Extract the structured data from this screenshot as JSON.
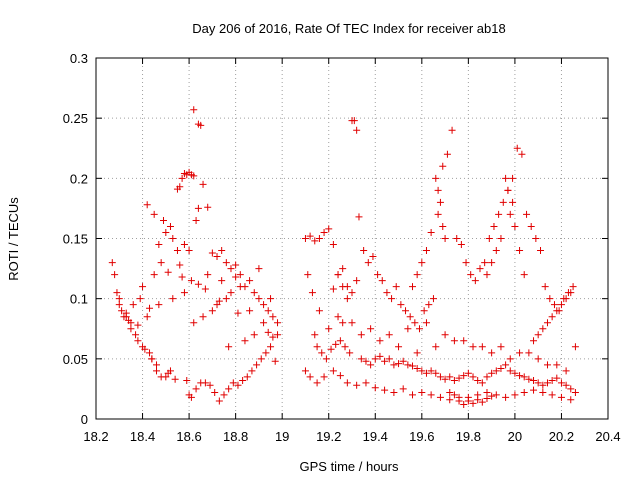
{
  "chart_data": {
    "type": "scatter",
    "title": "Day 206 of 2016, Rate Of TEC Index for receiver ab18",
    "xlabel": "GPS time / hours",
    "ylabel": "ROTI / TECUs",
    "xlim": [
      18.2,
      20.4
    ],
    "ylim": [
      0,
      0.3
    ],
    "xticks": [
      "18.2",
      "18.4",
      "18.6",
      "18.8",
      "19",
      "19.2",
      "19.4",
      "19.6",
      "19.8",
      "20",
      "20.2",
      "20.4"
    ],
    "yticks": [
      "0",
      "0.05",
      "0.1",
      "0.15",
      "0.2",
      "0.25",
      "0.3"
    ],
    "grid": true,
    "marker": "+",
    "color": "#e00000",
    "series": [
      {
        "name": "ROTI",
        "x": [
          18.62,
          18.64,
          18.65,
          18.58,
          18.59,
          18.6,
          18.61,
          18.62,
          18.56,
          18.55,
          18.57,
          18.66,
          18.64,
          18.68,
          18.63,
          18.42,
          18.45,
          18.5,
          18.52,
          18.47,
          18.49,
          18.53,
          18.6,
          18.58,
          18.7,
          18.72,
          18.74,
          18.76,
          18.78,
          18.8,
          18.82,
          18.84,
          18.86,
          18.88,
          18.9,
          18.92,
          18.94,
          18.96,
          18.98,
          18.27,
          18.28,
          18.29,
          18.3,
          18.31,
          18.32,
          18.33,
          18.35,
          18.37,
          18.38,
          18.4,
          18.41,
          18.43,
          18.44,
          18.46,
          18.48,
          18.51,
          18.54,
          18.67,
          18.69,
          18.71,
          18.73,
          18.75,
          18.77,
          18.79,
          18.81,
          18.83,
          18.85,
          18.87,
          18.89,
          18.91,
          18.93,
          18.95,
          18.97,
          18.6,
          18.61,
          18.63,
          18.65,
          18.59,
          18.5,
          18.52,
          18.46,
          18.44,
          18.62,
          18.66,
          18.7,
          18.72,
          18.76,
          18.78,
          18.82,
          18.68,
          18.74,
          18.8,
          18.9,
          18.95,
          18.98,
          18.3,
          18.33,
          18.36,
          18.4,
          18.45,
          18.48,
          18.55,
          18.57,
          18.64,
          18.86,
          18.92,
          18.35,
          18.39,
          18.42,
          18.47,
          18.53,
          18.58,
          18.77,
          18.84,
          18.88,
          18.94,
          18.96,
          18.34,
          18.38,
          18.43,
          18.51,
          18.56,
          18.61,
          18.67,
          18.73,
          18.81,
          19.3,
          19.31,
          19.32,
          19.1,
          19.12,
          19.14,
          19.16,
          19.18,
          19.2,
          19.22,
          19.24,
          19.26,
          19.28,
          19.33,
          19.35,
          19.37,
          19.39,
          19.41,
          19.43,
          19.45,
          19.47,
          19.49,
          19.51,
          19.53,
          19.55,
          19.57,
          19.59,
          19.61,
          19.63,
          19.65,
          19.67,
          19.69,
          19.71,
          19.73,
          19.75,
          19.77,
          19.79,
          19.81,
          19.83,
          19.85,
          19.87,
          19.89,
          19.91,
          19.93,
          19.95,
          19.97,
          19.99,
          20.01,
          20.03,
          20.05,
          20.07,
          20.09,
          20.11,
          20.13,
          20.15,
          20.17,
          20.19,
          20.21,
          20.23,
          20.25,
          19.11,
          19.13,
          19.15,
          19.17,
          19.19,
          19.21,
          19.23,
          19.25,
          19.27,
          19.29,
          19.34,
          19.36,
          19.38,
          19.4,
          19.42,
          19.44,
          19.46,
          19.48,
          19.5,
          19.52,
          19.54,
          19.56,
          19.58,
          19.6,
          19.62,
          19.64,
          19.66,
          19.68,
          19.7,
          19.72,
          19.74,
          19.76,
          19.78,
          19.8,
          19.82,
          19.84,
          19.86,
          19.88,
          19.9,
          19.92,
          19.94,
          19.96,
          19.98,
          20.0,
          20.02,
          20.04,
          20.06,
          20.08,
          20.1,
          20.12,
          20.14,
          20.16,
          20.18,
          20.2,
          20.22,
          20.24,
          20.26,
          19.66,
          19.67,
          19.68,
          19.69,
          19.7,
          19.64,
          19.62,
          19.6,
          19.58,
          19.56,
          19.96,
          19.97,
          19.98,
          19.99,
          20.0,
          19.94,
          19.92,
          19.9,
          19.88,
          20.02,
          20.04,
          19.1,
          19.12,
          19.15,
          19.18,
          19.22,
          19.25,
          19.28,
          19.32,
          19.36,
          19.4,
          19.44,
          19.48,
          19.52,
          19.56,
          19.6,
          19.64,
          19.68,
          19.72,
          19.76,
          19.8,
          19.84,
          19.88,
          19.92,
          19.96,
          20.0,
          20.04,
          20.08,
          20.12,
          20.16,
          20.2,
          20.24,
          19.14,
          19.2,
          19.26,
          19.34,
          19.42,
          19.5,
          19.58,
          19.66,
          19.74,
          19.82,
          19.9,
          19.98,
          20.06,
          20.14,
          20.22,
          19.16,
          19.24,
          19.3,
          19.38,
          19.46,
          19.54,
          19.62,
          19.7,
          19.78,
          19.86,
          19.94,
          20.02,
          20.1,
          20.18,
          20.26,
          19.78,
          19.8,
          19.82,
          19.76,
          19.74,
          19.84,
          19.86,
          19.72,
          19.88,
          19.9,
          20.08,
          20.1,
          20.12,
          20.14,
          20.16,
          20.18,
          20.2,
          20.22,
          20.24,
          19.28,
          19.26,
          19.3,
          19.32,
          19.24,
          19.22
        ],
        "y": [
          0.257,
          0.245,
          0.244,
          0.204,
          0.203,
          0.205,
          0.203,
          0.202,
          0.193,
          0.191,
          0.2,
          0.195,
          0.175,
          0.176,
          0.165,
          0.178,
          0.17,
          0.155,
          0.16,
          0.145,
          0.165,
          0.15,
          0.14,
          0.145,
          0.138,
          0.135,
          0.14,
          0.13,
          0.125,
          0.128,
          0.12,
          0.11,
          0.115,
          0.105,
          0.1,
          0.095,
          0.09,
          0.085,
          0.08,
          0.13,
          0.12,
          0.105,
          0.095,
          0.09,
          0.085,
          0.088,
          0.08,
          0.07,
          0.065,
          0.06,
          0.058,
          0.055,
          0.05,
          0.04,
          0.035,
          0.038,
          0.033,
          0.03,
          0.028,
          0.022,
          0.015,
          0.02,
          0.025,
          0.03,
          0.028,
          0.032,
          0.035,
          0.04,
          0.045,
          0.05,
          0.055,
          0.06,
          0.048,
          0.02,
          0.018,
          0.025,
          0.03,
          0.032,
          0.035,
          0.04,
          0.045,
          0.05,
          0.08,
          0.085,
          0.09,
          0.095,
          0.1,
          0.105,
          0.11,
          0.12,
          0.115,
          0.118,
          0.125,
          0.1,
          0.07,
          0.1,
          0.085,
          0.095,
          0.11,
          0.12,
          0.13,
          0.14,
          0.118,
          0.112,
          0.09,
          0.08,
          0.075,
          0.1,
          0.085,
          0.095,
          0.1,
          0.105,
          0.06,
          0.065,
          0.07,
          0.072,
          0.068,
          0.082,
          0.078,
          0.092,
          0.122,
          0.128,
          0.115,
          0.108,
          0.098,
          0.088,
          0.248,
          0.248,
          0.24,
          0.15,
          0.152,
          0.148,
          0.15,
          0.155,
          0.158,
          0.145,
          0.12,
          0.125,
          0.11,
          0.168,
          0.14,
          0.13,
          0.135,
          0.12,
          0.115,
          0.105,
          0.1,
          0.11,
          0.095,
          0.09,
          0.085,
          0.08,
          0.075,
          0.09,
          0.095,
          0.1,
          0.17,
          0.21,
          0.22,
          0.24,
          0.15,
          0.145,
          0.13,
          0.12,
          0.115,
          0.125,
          0.13,
          0.15,
          0.16,
          0.17,
          0.18,
          0.19,
          0.2,
          0.225,
          0.22,
          0.17,
          0.16,
          0.15,
          0.14,
          0.11,
          0.1,
          0.095,
          0.09,
          0.1,
          0.105,
          0.11,
          0.12,
          0.105,
          0.06,
          0.055,
          0.05,
          0.058,
          0.062,
          0.065,
          0.06,
          0.055,
          0.05,
          0.048,
          0.045,
          0.05,
          0.052,
          0.048,
          0.05,
          0.045,
          0.046,
          0.048,
          0.045,
          0.044,
          0.042,
          0.04,
          0.038,
          0.04,
          0.038,
          0.035,
          0.033,
          0.035,
          0.032,
          0.034,
          0.036,
          0.038,
          0.035,
          0.032,
          0.03,
          0.035,
          0.038,
          0.04,
          0.042,
          0.045,
          0.04,
          0.038,
          0.036,
          0.035,
          0.033,
          0.032,
          0.03,
          0.028,
          0.03,
          0.032,
          0.034,
          0.03,
          0.028,
          0.025,
          0.022,
          0.2,
          0.19,
          0.18,
          0.16,
          0.15,
          0.155,
          0.14,
          0.13,
          0.12,
          0.11,
          0.2,
          0.19,
          0.17,
          0.18,
          0.16,
          0.15,
          0.14,
          0.13,
          0.12,
          0.14,
          0.12,
          0.04,
          0.035,
          0.03,
          0.035,
          0.04,
          0.036,
          0.03,
          0.028,
          0.03,
          0.026,
          0.024,
          0.022,
          0.025,
          0.02,
          0.022,
          0.02,
          0.018,
          0.016,
          0.015,
          0.018,
          0.02,
          0.022,
          0.02,
          0.018,
          0.02,
          0.022,
          0.024,
          0.022,
          0.02,
          0.018,
          0.016,
          0.07,
          0.075,
          0.08,
          0.07,
          0.065,
          0.06,
          0.055,
          0.06,
          0.065,
          0.06,
          0.055,
          0.05,
          0.055,
          0.045,
          0.04,
          0.09,
          0.085,
          0.08,
          0.075,
          0.07,
          0.075,
          0.08,
          0.07,
          0.065,
          0.06,
          0.06,
          0.055,
          0.05,
          0.045,
          0.06,
          0.012,
          0.015,
          0.013,
          0.018,
          0.02,
          0.016,
          0.014,
          0.022,
          0.017,
          0.019,
          0.065,
          0.07,
          0.075,
          0.08,
          0.085,
          0.09,
          0.095,
          0.1,
          0.105,
          0.1,
          0.11,
          0.105,
          0.115,
          0.12,
          0.108
        ]
      }
    ]
  }
}
